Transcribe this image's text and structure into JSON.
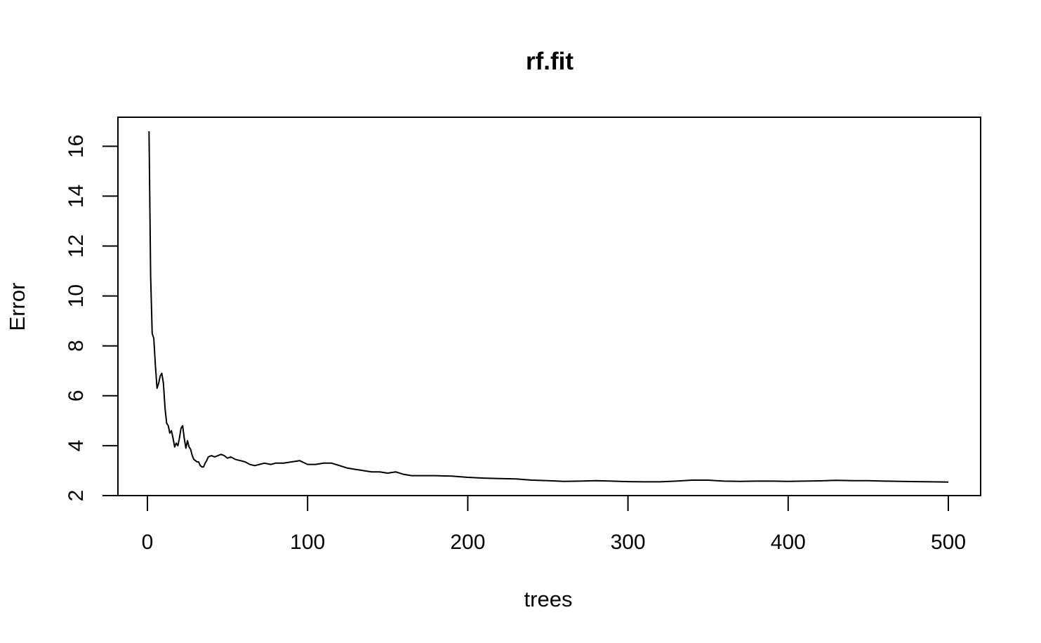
{
  "chart_data": {
    "type": "line",
    "title": "rf.fit",
    "xlabel": "trees",
    "ylabel": "Error",
    "xlim": [
      0,
      500
    ],
    "ylim": [
      2,
      16.6
    ],
    "x_ticks": [
      0,
      100,
      200,
      300,
      400,
      500
    ],
    "y_ticks": [
      2,
      4,
      6,
      8,
      10,
      12,
      14,
      16
    ],
    "grid": false,
    "series": [
      {
        "name": "Error",
        "color": "#000000",
        "points": [
          [
            1,
            16.6
          ],
          [
            2,
            10.8
          ],
          [
            3,
            8.5
          ],
          [
            4,
            8.3
          ],
          [
            5,
            7.2
          ],
          [
            6,
            6.3
          ],
          [
            7,
            6.5
          ],
          [
            8,
            6.8
          ],
          [
            9,
            6.9
          ],
          [
            10,
            6.5
          ],
          [
            11,
            5.5
          ],
          [
            12,
            4.9
          ],
          [
            13,
            4.8
          ],
          [
            14,
            4.5
          ],
          [
            15,
            4.6
          ],
          [
            16,
            4.3
          ],
          [
            17,
            3.95
          ],
          [
            18,
            4.1
          ],
          [
            19,
            4.0
          ],
          [
            20,
            4.3
          ],
          [
            21,
            4.7
          ],
          [
            22,
            4.8
          ],
          [
            23,
            4.3
          ],
          [
            24,
            3.9
          ],
          [
            25,
            4.2
          ],
          [
            26,
            3.95
          ],
          [
            27,
            3.85
          ],
          [
            28,
            3.6
          ],
          [
            29,
            3.45
          ],
          [
            30,
            3.4
          ],
          [
            31,
            3.35
          ],
          [
            32,
            3.35
          ],
          [
            33,
            3.2
          ],
          [
            34,
            3.15
          ],
          [
            35,
            3.15
          ],
          [
            36,
            3.3
          ],
          [
            37,
            3.4
          ],
          [
            38,
            3.55
          ],
          [
            40,
            3.6
          ],
          [
            42,
            3.55
          ],
          [
            44,
            3.6
          ],
          [
            46,
            3.65
          ],
          [
            48,
            3.6
          ],
          [
            50,
            3.5
          ],
          [
            52,
            3.55
          ],
          [
            55,
            3.45
          ],
          [
            58,
            3.4
          ],
          [
            61,
            3.35
          ],
          [
            64,
            3.25
          ],
          [
            67,
            3.2
          ],
          [
            70,
            3.25
          ],
          [
            73,
            3.3
          ],
          [
            77,
            3.25
          ],
          [
            80,
            3.3
          ],
          [
            85,
            3.3
          ],
          [
            90,
            3.35
          ],
          [
            95,
            3.4
          ],
          [
            100,
            3.25
          ],
          [
            105,
            3.25
          ],
          [
            110,
            3.3
          ],
          [
            115,
            3.3
          ],
          [
            120,
            3.2
          ],
          [
            125,
            3.1
          ],
          [
            130,
            3.05
          ],
          [
            135,
            3.0
          ],
          [
            140,
            2.95
          ],
          [
            145,
            2.95
          ],
          [
            150,
            2.9
          ],
          [
            155,
            2.95
          ],
          [
            160,
            2.85
          ],
          [
            165,
            2.8
          ],
          [
            170,
            2.8
          ],
          [
            180,
            2.8
          ],
          [
            190,
            2.78
          ],
          [
            200,
            2.73
          ],
          [
            210,
            2.7
          ],
          [
            220,
            2.68
          ],
          [
            230,
            2.67
          ],
          [
            240,
            2.62
          ],
          [
            250,
            2.6
          ],
          [
            260,
            2.57
          ],
          [
            270,
            2.58
          ],
          [
            280,
            2.6
          ],
          [
            290,
            2.58
          ],
          [
            300,
            2.56
          ],
          [
            310,
            2.55
          ],
          [
            320,
            2.55
          ],
          [
            330,
            2.58
          ],
          [
            340,
            2.62
          ],
          [
            350,
            2.62
          ],
          [
            360,
            2.58
          ],
          [
            370,
            2.57
          ],
          [
            380,
            2.58
          ],
          [
            390,
            2.58
          ],
          [
            400,
            2.57
          ],
          [
            410,
            2.58
          ],
          [
            420,
            2.59
          ],
          [
            430,
            2.61
          ],
          [
            440,
            2.6
          ],
          [
            450,
            2.6
          ],
          [
            460,
            2.58
          ],
          [
            470,
            2.57
          ],
          [
            480,
            2.56
          ],
          [
            490,
            2.55
          ],
          [
            500,
            2.54
          ]
        ]
      }
    ]
  }
}
